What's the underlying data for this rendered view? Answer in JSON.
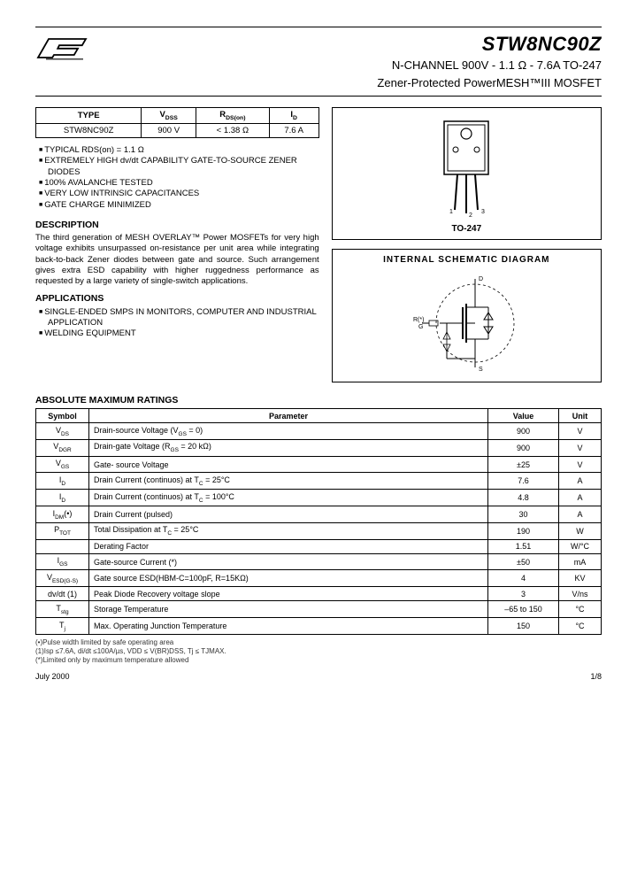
{
  "header": {
    "part_number": "STW8NC90Z",
    "subtitle_line1": "N-CHANNEL 900V - 1.1 Ω - 7.6A TO-247",
    "subtitle_line2": "Zener-Protected PowerMESH™III MOSFET"
  },
  "spec_table": {
    "columns": [
      "TYPE",
      "VDSS",
      "RDS(on)",
      "ID"
    ],
    "row": [
      "STW8NC90Z",
      "900 V",
      "< 1.38 Ω",
      "7.6 A"
    ]
  },
  "features": [
    "TYPICAL RDS(on) = 1.1 Ω",
    "EXTREMELY HIGH dv/dt CAPABILITY GATE-TO-SOURCE ZENER DIODES",
    "100% AVALANCHE TESTED",
    "VERY LOW INTRINSIC CAPACITANCES",
    "GATE CHARGE MINIMIZED"
  ],
  "description": {
    "heading": "DESCRIPTION",
    "text": "The third generation of MESH OVERLAY™ Power MOSFETs for very high voltage exhibits unsurpassed on-resistance per unit area while integrating back-to-back Zener diodes between gate and source. Such arrangement gives extra ESD capability with higher ruggedness performance as requested by a large variety of single-switch applications."
  },
  "applications": {
    "heading": "APPLICATIONS",
    "items": [
      "SINGLE-ENDED SMPS IN MONITORS, COMPUTER AND INDUSTRIAL APPLICATION",
      "WELDING EQUIPMENT"
    ]
  },
  "package": {
    "label": "TO-247"
  },
  "schematic": {
    "title": "INTERNAL  SCHEMATIC  DIAGRAM"
  },
  "abs_ratings": {
    "heading": "ABSOLUTE MAXIMUM RATINGS",
    "columns": [
      "Symbol",
      "Parameter",
      "Value",
      "Unit"
    ],
    "rows": [
      {
        "sym": "V<sub>DS</sub>",
        "param": "Drain-source Voltage (V<sub>GS</sub> = 0)",
        "val": "900",
        "unit": "V"
      },
      {
        "sym": "V<sub>DGR</sub>",
        "param": "Drain-gate Voltage (R<sub>GS</sub> = 20 kΩ)",
        "val": "900",
        "unit": "V"
      },
      {
        "sym": "V<sub>GS</sub>",
        "param": "Gate- source Voltage",
        "val": "±25",
        "unit": "V"
      },
      {
        "sym": "I<sub>D</sub>",
        "param": "Drain Current (continuos) at T<sub>C</sub> = 25°C",
        "val": "7.6",
        "unit": "A"
      },
      {
        "sym": "I<sub>D</sub>",
        "param": "Drain Current (continuos) at T<sub>C</sub> = 100°C",
        "val": "4.8",
        "unit": "A"
      },
      {
        "sym": "I<sub>DM</sub>(•)",
        "param": "Drain Current (pulsed)",
        "val": "30",
        "unit": "A"
      },
      {
        "sym": "P<sub>TOT</sub>",
        "param": "Total Dissipation at T<sub>C</sub> = 25°C",
        "val": "190",
        "unit": "W"
      },
      {
        "sym": "",
        "param": "Derating Factor",
        "val": "1.51",
        "unit": "W/°C"
      },
      {
        "sym": "I<sub>GS</sub>",
        "param": "Gate-source Current (*)",
        "val": "±50",
        "unit": "mA"
      },
      {
        "sym": "V<sub>ESD(G-S)</sub>",
        "param": "Gate source ESD(HBM-C=100pF, R=15KΩ)",
        "val": "4",
        "unit": "KV"
      },
      {
        "sym": "dv/dt (1)",
        "param": "Peak Diode Recovery voltage slope",
        "val": "3",
        "unit": "V/ns"
      },
      {
        "sym": "T<sub>stg</sub>",
        "param": "Storage Temperature",
        "val": "–65 to 150",
        "unit": "°C"
      },
      {
        "sym": "T<sub>j</sub>",
        "param": "Max. Operating Junction Temperature",
        "val": "150",
        "unit": "°C"
      }
    ]
  },
  "footnotes": [
    "(•)Pulse width limited by safe operating area",
    "(1)Isp ≤7.6A, di/dt ≤100A/µs, VDD ≤ V(BR)DSS, Tj ≤ TJMAX.",
    "(*)Limited only by maximum temperature allowed"
  ],
  "footer": {
    "date": "July 2000",
    "page": "1/8"
  }
}
